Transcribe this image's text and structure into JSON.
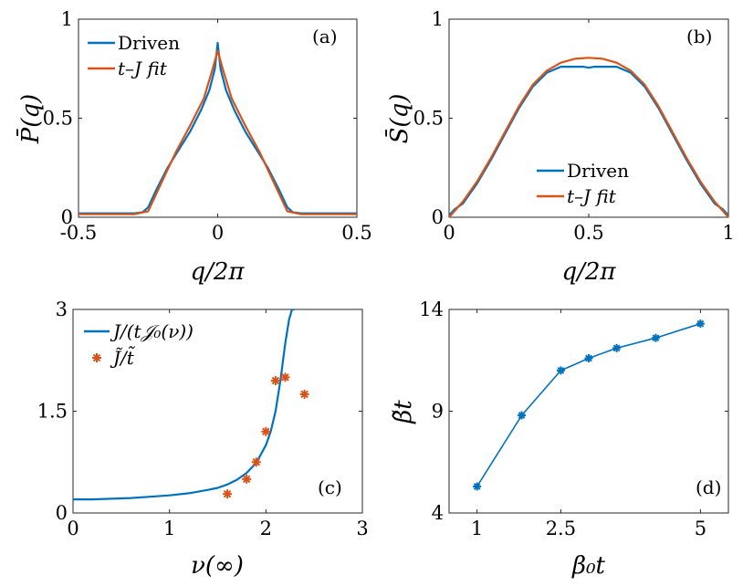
{
  "colors": {
    "blue": "#0072BD",
    "orange": "#D95319"
  },
  "chart_data": [
    {
      "type": "line",
      "panel": "(a)",
      "xlabel": "q/2π",
      "ylabel": "P̄(q)",
      "xlim": [
        -0.5,
        0.5
      ],
      "ylim": [
        0,
        1
      ],
      "xticks": [
        -0.5,
        0,
        0.5
      ],
      "xticklabels": [
        "-0.5",
        "0",
        "0.5"
      ],
      "yticks": [
        0,
        0.5,
        1
      ],
      "yticklabels": [
        "0",
        "0.5",
        "1"
      ],
      "legend": "top-left",
      "series": [
        {
          "name": "Driven",
          "color": "#0072BD",
          "x": [
            -0.5,
            -0.4,
            -0.3,
            -0.27,
            -0.25,
            -0.22,
            -0.18,
            -0.14,
            -0.1,
            -0.06,
            -0.03,
            -0.01,
            0,
            0.01,
            0.03,
            0.06,
            0.1,
            0.14,
            0.18,
            0.22,
            0.25,
            0.27,
            0.3,
            0.4,
            0.5
          ],
          "y": [
            0.02,
            0.02,
            0.02,
            0.025,
            0.05,
            0.14,
            0.25,
            0.34,
            0.43,
            0.54,
            0.64,
            0.75,
            0.88,
            0.75,
            0.64,
            0.54,
            0.43,
            0.34,
            0.25,
            0.14,
            0.05,
            0.025,
            0.02,
            0.02,
            0.02
          ]
        },
        {
          "name": "t–J fit",
          "color": "#D95319",
          "x": [
            -0.5,
            -0.4,
            -0.3,
            -0.25,
            -0.2,
            -0.15,
            -0.1,
            -0.05,
            -0.02,
            0,
            0.02,
            0.05,
            0.1,
            0.15,
            0.2,
            0.25,
            0.3,
            0.4,
            0.5
          ],
          "y": [
            0.015,
            0.015,
            0.015,
            0.03,
            0.18,
            0.33,
            0.46,
            0.6,
            0.74,
            0.84,
            0.74,
            0.6,
            0.46,
            0.33,
            0.18,
            0.03,
            0.015,
            0.015,
            0.015
          ]
        }
      ]
    },
    {
      "type": "line",
      "panel": "(b)",
      "xlabel": "q/2π",
      "ylabel": "S̄(q)",
      "xlim": [
        0,
        1
      ],
      "ylim": [
        0,
        1
      ],
      "xticks": [
        0,
        0.5,
        1
      ],
      "xticklabels": [
        "0",
        "0.5",
        "1"
      ],
      "yticks": [
        0,
        0.5,
        1
      ],
      "yticklabels": [
        "0",
        "0.5",
        "1"
      ],
      "legend": "bottom-center",
      "series": [
        {
          "name": "Driven",
          "color": "#0072BD",
          "x": [
            0,
            0.02,
            0.05,
            0.1,
            0.15,
            0.2,
            0.25,
            0.3,
            0.35,
            0.4,
            0.45,
            0.48,
            0.5,
            0.52,
            0.55,
            0.6,
            0.65,
            0.7,
            0.75,
            0.8,
            0.85,
            0.9,
            0.95,
            0.98,
            1
          ],
          "y": [
            0.01,
            0.04,
            0.07,
            0.17,
            0.29,
            0.42,
            0.55,
            0.66,
            0.73,
            0.76,
            0.76,
            0.76,
            0.755,
            0.76,
            0.76,
            0.76,
            0.73,
            0.66,
            0.55,
            0.42,
            0.29,
            0.17,
            0.07,
            0.04,
            0.01
          ]
        },
        {
          "name": "t–J fit",
          "color": "#D95319",
          "x": [
            0,
            0.05,
            0.1,
            0.15,
            0.2,
            0.25,
            0.3,
            0.35,
            0.4,
            0.45,
            0.5,
            0.55,
            0.6,
            0.65,
            0.7,
            0.75,
            0.8,
            0.85,
            0.9,
            0.95,
            1
          ],
          "y": [
            0,
            0.08,
            0.18,
            0.3,
            0.43,
            0.56,
            0.67,
            0.74,
            0.78,
            0.8,
            0.805,
            0.8,
            0.78,
            0.74,
            0.67,
            0.56,
            0.43,
            0.3,
            0.18,
            0.08,
            0
          ]
        }
      ]
    },
    {
      "type": "line+scatter",
      "panel": "(c)",
      "xlabel": "ν(∞)",
      "xlim": [
        0,
        3
      ],
      "ylim": [
        0,
        3
      ],
      "xticks": [
        0,
        1,
        2,
        3
      ],
      "xticklabels": [
        "0",
        "1",
        "2",
        "3"
      ],
      "yticks": [
        0,
        1.5,
        3
      ],
      "yticklabels": [
        "0",
        "1.5",
        "3"
      ],
      "legend": "top-left",
      "series": [
        {
          "name": "J/(t𝒥₀(ν))",
          "kind": "line",
          "color": "#0072BD",
          "x": [
            0,
            0.2,
            0.4,
            0.6,
            0.8,
            1.0,
            1.2,
            1.4,
            1.5,
            1.6,
            1.7,
            1.8,
            1.9,
            2.0,
            2.05,
            2.1,
            2.15,
            2.2,
            2.24,
            2.27,
            2.3
          ],
          "y": [
            0.2,
            0.2,
            0.21,
            0.22,
            0.24,
            0.26,
            0.29,
            0.34,
            0.37,
            0.42,
            0.49,
            0.59,
            0.74,
            1.0,
            1.2,
            1.5,
            1.95,
            2.5,
            2.85,
            3.0,
            3.0
          ]
        },
        {
          "name": "J̃/t̃",
          "kind": "scatter",
          "color": "#D95319",
          "x": [
            1.6,
            1.8,
            1.9,
            2.0,
            2.1,
            2.2,
            2.4
          ],
          "y": [
            0.28,
            0.5,
            0.75,
            1.2,
            1.95,
            2.0,
            1.75
          ]
        }
      ]
    },
    {
      "type": "line",
      "panel": "(d)",
      "xlabel": "β₀t",
      "ylabel": "β̃t",
      "xlim": [
        0.5,
        5.5
      ],
      "ylim": [
        4,
        14
      ],
      "xticks": [
        1,
        2.5,
        5
      ],
      "xticklabels": [
        "1",
        "2.5",
        "5"
      ],
      "yticks": [
        4,
        9,
        14
      ],
      "yticklabels": [
        "4",
        "9",
        "14"
      ],
      "series": [
        {
          "name": "",
          "color": "#0072BD",
          "marker": "asterisk",
          "x": [
            1,
            1.8,
            2.5,
            3.0,
            3.5,
            4.2,
            5.0
          ],
          "y": [
            5.3,
            8.8,
            11.0,
            11.6,
            12.1,
            12.6,
            13.3
          ]
        }
      ]
    }
  ]
}
